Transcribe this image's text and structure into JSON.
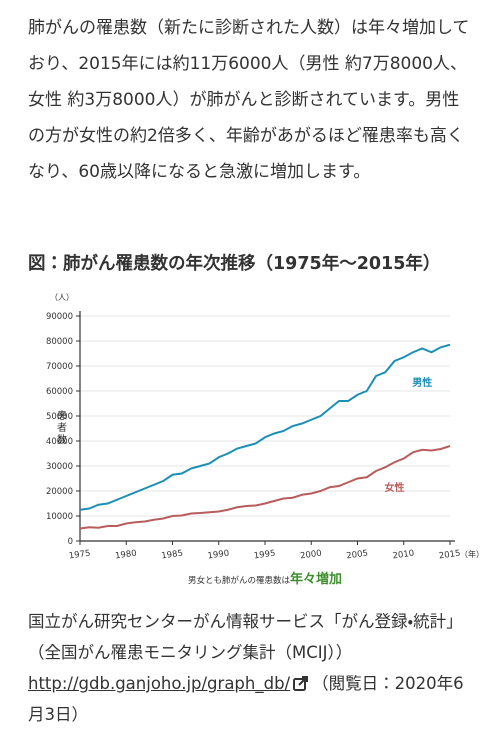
{
  "paragraph": "肺がんの罹患数（新たに診断された人数）は年々増加しており、2015年には約11万6000人（男性 約7万8000人、女性 約3万8000人）が肺がんと診断されています。男性の方が女性の約2倍多く、年齢があがるほど罹患率も高くなり、60歳以降になると急激に増加します。",
  "figure_title": "図：肺がん罹患数の年次推移（1975年〜2015年）",
  "chart_data": {
    "type": "line",
    "y_unit": "（人）",
    "x_unit": "（年）",
    "y_label": "患者数",
    "annotation": "男女とも肺がんの罹患数は",
    "annotation_emphasis": "年々増加",
    "x": [
      1975,
      1976,
      1977,
      1978,
      1979,
      1980,
      1981,
      1982,
      1983,
      1984,
      1985,
      1986,
      1987,
      1988,
      1989,
      1990,
      1991,
      1992,
      1993,
      1994,
      1995,
      1996,
      1997,
      1998,
      1999,
      2000,
      2001,
      2002,
      2003,
      2004,
      2005,
      2006,
      2007,
      2008,
      2009,
      2010,
      2011,
      2012,
      2013,
      2014,
      2015
    ],
    "series": [
      {
        "name": "男性",
        "color": "#1b8fb5",
        "values": [
          12500,
          13000,
          14500,
          15000,
          16500,
          18000,
          19500,
          21000,
          22500,
          24000,
          26500,
          27000,
          29000,
          30000,
          31000,
          33500,
          35000,
          37000,
          38000,
          39000,
          41500,
          43000,
          44000,
          46000,
          47000,
          48500,
          50000,
          53000,
          56000,
          56000,
          58500,
          60000,
          66000,
          67500,
          72000,
          73500,
          75500,
          77000,
          75500,
          77500,
          78500
        ]
      },
      {
        "name": "女性",
        "color": "#b85c5c",
        "values": [
          5000,
          5500,
          5300,
          6000,
          6000,
          7000,
          7500,
          7800,
          8500,
          9000,
          10000,
          10200,
          11000,
          11200,
          11500,
          11800,
          12500,
          13500,
          14000,
          14200,
          15000,
          16000,
          17000,
          17300,
          18500,
          19000,
          20000,
          21500,
          22000,
          23500,
          25000,
          25500,
          28000,
          29500,
          31500,
          33000,
          35500,
          36500,
          36200,
          36800,
          38000
        ]
      }
    ],
    "xlim": [
      1975,
      2015
    ],
    "xticks": [
      1975,
      1980,
      1985,
      1990,
      1995,
      2000,
      2005,
      2010,
      2015
    ],
    "ylim": [
      0,
      90000
    ],
    "yticks": [
      0,
      10000,
      20000,
      30000,
      40000,
      50000,
      60000,
      70000,
      80000,
      90000
    ],
    "grid": true,
    "emphasis_color": "#3f8f2f"
  },
  "caption": {
    "source": "国立がん研究センターがん情報サービス「がん登録・統計」（全国がん罹患モニタリング集計（MCIJ））",
    "link": "http://gdb.ganjoho.jp/graph_db/",
    "accessed": "（閲覧日：2020年6月3日）"
  }
}
